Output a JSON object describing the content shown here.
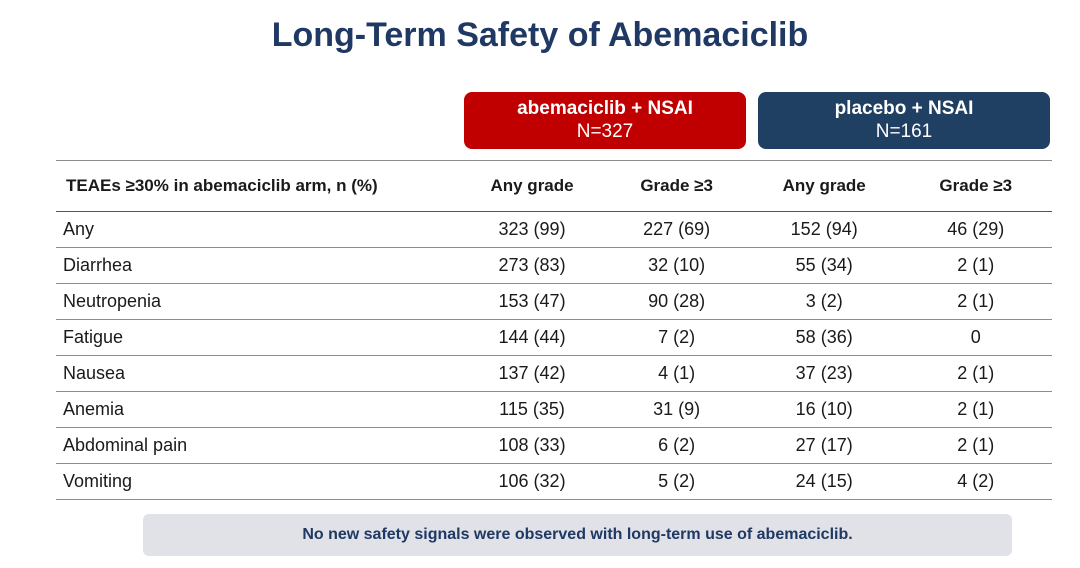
{
  "title": "Long-Term Safety of Abemaciclib",
  "arms": [
    {
      "name": "abemaciclib + NSAI",
      "n": "N=327",
      "color": "#c00000"
    },
    {
      "name": "placebo + NSAI",
      "n": "N=161",
      "color": "#1f3f63"
    }
  ],
  "table": {
    "headers": [
      "TEAEs ≥30% in abemaciclib arm, n (%)",
      "Any grade",
      "Grade ≥3",
      "Any grade",
      "Grade ≥3"
    ],
    "rows": [
      [
        "Any",
        "323 (99)",
        "227 (69)",
        "152 (94)",
        "46 (29)"
      ],
      [
        "Diarrhea",
        "273 (83)",
        "32 (10)",
        "55 (34)",
        "2 (1)"
      ],
      [
        "Neutropenia",
        "153 (47)",
        "90 (28)",
        "3 (2)",
        "2 (1)"
      ],
      [
        "Fatigue",
        "144 (44)",
        "7 (2)",
        "58 (36)",
        "0"
      ],
      [
        "Nausea",
        "137 (42)",
        "4 (1)",
        "37 (23)",
        "2 (1)"
      ],
      [
        "Anemia",
        "115 (35)",
        "31 (9)",
        "16 (10)",
        "2 (1)"
      ],
      [
        "Abdominal pain",
        "108 (33)",
        "6 (2)",
        "27 (17)",
        "2 (1)"
      ],
      [
        "Vomiting",
        "106 (32)",
        "5 (2)",
        "24 (15)",
        "4 (2)"
      ]
    ]
  },
  "footnote": "No new safety signals were observed with long-term use of abemaciclib."
}
